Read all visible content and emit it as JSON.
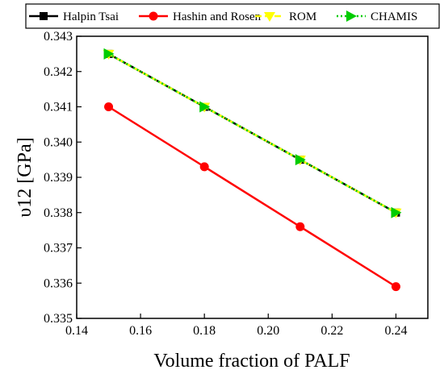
{
  "chart_data": {
    "type": "line",
    "xlabel": "Volume fraction of PALF",
    "ylabel": "υ12  [GPa]",
    "xlim": [
      0.14,
      0.25
    ],
    "ylim": [
      0.335,
      0.343
    ],
    "x_ticks": [
      "0.14",
      "0.16",
      "0.18",
      "0.20",
      "0.22",
      "0.24"
    ],
    "y_ticks": [
      "0.335",
      "0.336",
      "0.337",
      "0.338",
      "0.339",
      "0.340",
      "0.341",
      "0.342",
      "0.343"
    ],
    "x": [
      0.15,
      0.18,
      0.21,
      0.24
    ],
    "series": [
      {
        "name": "Halpin Tsai",
        "values": [
          0.3425,
          0.341,
          0.3395,
          0.338
        ],
        "color": "#000000",
        "marker": "square",
        "dash": "solid"
      },
      {
        "name": "Hashin and Rosen",
        "values": [
          0.341,
          0.3393,
          0.3376,
          0.3359
        ],
        "color": "#ff0000",
        "marker": "circle",
        "dash": "solid"
      },
      {
        "name": "ROM",
        "values": [
          0.3425,
          0.341,
          0.3395,
          0.338
        ],
        "color": "#ffff00",
        "marker": "triangle-down",
        "dash": "dashed"
      },
      {
        "name": "CHAMIS",
        "values": [
          0.3425,
          0.341,
          0.3395,
          0.338
        ],
        "color": "#00cc00",
        "marker": "triangle-right",
        "dash": "dotted"
      }
    ],
    "legend_position": "top",
    "grid": false
  }
}
